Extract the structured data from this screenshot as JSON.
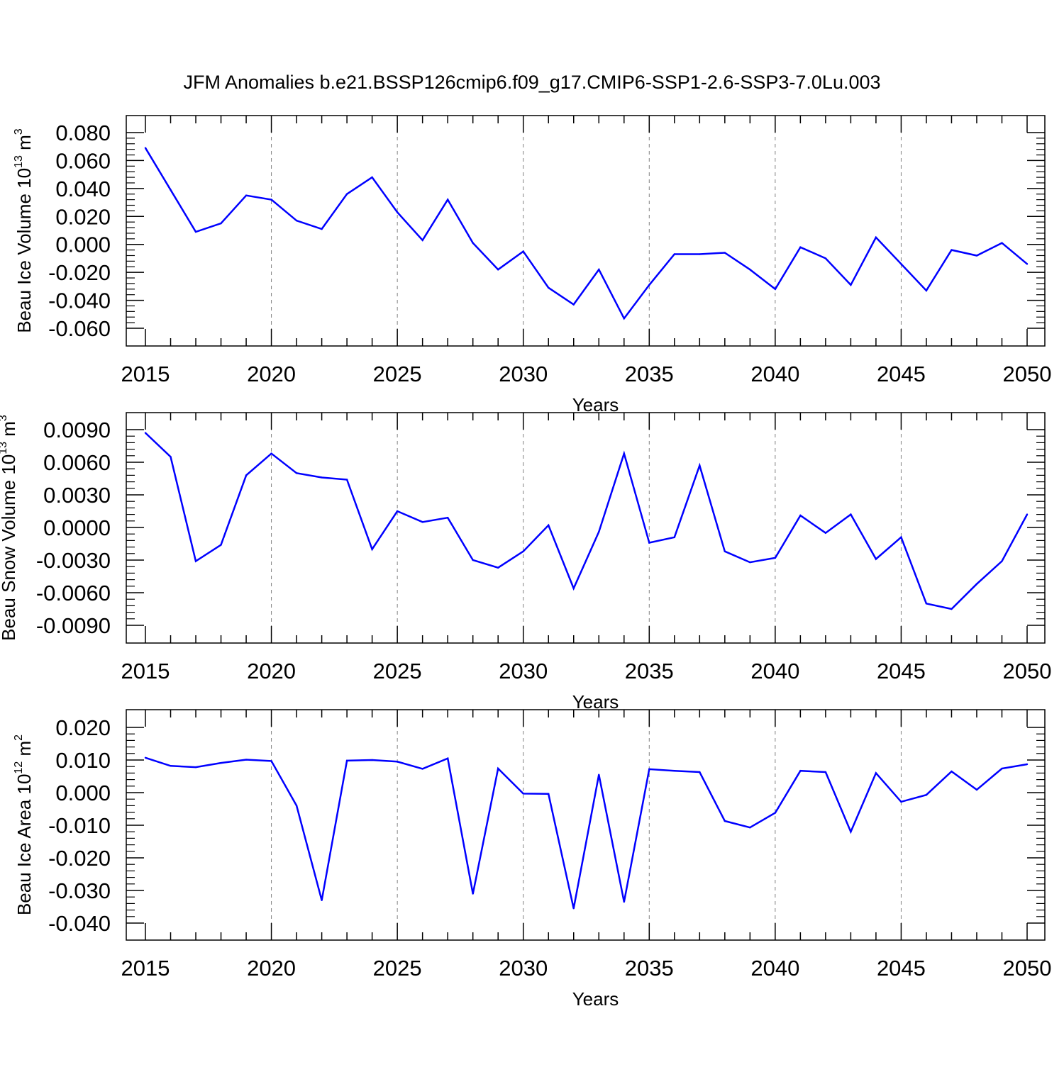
{
  "figure": {
    "title": "JFM Anomalies b.e21.BSSP126cmip6.f09_g17.CMIP6-SSP1-2.6-SSP3-7.0Lu.003"
  },
  "colors": {
    "line": "#0000ff",
    "axes": "#000000",
    "grid": "#808080"
  },
  "chart_data": [
    {
      "type": "line",
      "title": "",
      "xlabel": "Years",
      "ylabel": {
        "base": "Beau Ice Volume 10",
        "exp": "13",
        "unit": " m",
        "unit_exp": "3"
      },
      "xlim": [
        2015,
        2050
      ],
      "ylim": [
        -0.06,
        0.08
      ],
      "xticks": [
        2015,
        2020,
        2025,
        2030,
        2035,
        2040,
        2045,
        2050
      ],
      "yticks": [
        0.08,
        0.06,
        0.04,
        0.02,
        0.0,
        -0.02,
        -0.04,
        -0.06
      ],
      "ytick_labels": [
        "0.080",
        "0.060",
        "0.040",
        "0.020",
        "0.000",
        "-0.020",
        "-0.040",
        "-0.060"
      ],
      "grid": "vertical dashed at major x ticks",
      "x": [
        2015,
        2016,
        2017,
        2018,
        2019,
        2020,
        2021,
        2022,
        2023,
        2024,
        2025,
        2026,
        2027,
        2028,
        2029,
        2030,
        2031,
        2032,
        2033,
        2034,
        2035,
        2036,
        2037,
        2038,
        2039,
        2040,
        2041,
        2042,
        2043,
        2044,
        2045,
        2046,
        2047,
        2048,
        2049,
        2050
      ],
      "values": [
        0.069,
        0.039,
        0.009,
        0.015,
        0.035,
        0.032,
        0.017,
        0.011,
        0.036,
        0.048,
        0.023,
        0.003,
        0.032,
        0.001,
        -0.018,
        -0.005,
        -0.031,
        -0.043,
        -0.018,
        -0.053,
        -0.029,
        -0.007,
        -0.007,
        -0.006,
        -0.018,
        -0.032,
        -0.002,
        -0.01,
        -0.029,
        0.005,
        -0.014,
        -0.033,
        -0.004,
        -0.008,
        0.001,
        -0.014
      ]
    },
    {
      "type": "line",
      "title": "",
      "xlabel": "Years",
      "ylabel": {
        "base": "Beau Snow Volume 10",
        "exp": "13",
        "unit": " m",
        "unit_exp": "3"
      },
      "xlim": [
        2015,
        2050
      ],
      "ylim": [
        -0.009,
        0.009
      ],
      "xticks": [
        2015,
        2020,
        2025,
        2030,
        2035,
        2040,
        2045,
        2050
      ],
      "yticks": [
        0.009,
        0.006,
        0.003,
        0.0,
        -0.003,
        -0.006,
        -0.009
      ],
      "ytick_labels": [
        "0.0090",
        "0.0060",
        "0.0030",
        "0.0000",
        "-0.0030",
        "-0.0060",
        "-0.0090"
      ],
      "grid": "vertical dashed at major x ticks",
      "x": [
        2015,
        2016,
        2017,
        2018,
        2019,
        2020,
        2021,
        2022,
        2023,
        2024,
        2025,
        2026,
        2027,
        2028,
        2029,
        2030,
        2031,
        2032,
        2033,
        2034,
        2035,
        2036,
        2037,
        2038,
        2039,
        2040,
        2041,
        2042,
        2043,
        2044,
        2045,
        2046,
        2047,
        2048,
        2049,
        2050
      ],
      "values": [
        0.0087,
        0.0065,
        -0.0031,
        -0.0016,
        0.0048,
        0.0068,
        0.005,
        0.0046,
        0.0044,
        -0.002,
        0.0015,
        0.0005,
        0.0009,
        -0.003,
        -0.0037,
        -0.0022,
        0.0002,
        -0.0056,
        -0.0004,
        0.0068,
        -0.0014,
        -0.0009,
        0.0057,
        -0.0022,
        -0.0032,
        -0.0028,
        0.0011,
        -0.0005,
        0.0012,
        -0.0029,
        -0.0009,
        -0.007,
        -0.0075,
        -0.0052,
        -0.0031,
        0.0012
      ]
    },
    {
      "type": "line",
      "title": "",
      "xlabel": "Years",
      "ylabel": {
        "base": "Beau Ice Area 10",
        "exp": "12",
        "unit": " m",
        "unit_exp": "2"
      },
      "xlim": [
        2015,
        2050
      ],
      "ylim": [
        -0.04,
        0.02
      ],
      "xticks": [
        2015,
        2020,
        2025,
        2030,
        2035,
        2040,
        2045,
        2050
      ],
      "yticks": [
        0.02,
        0.01,
        0.0,
        -0.01,
        -0.02,
        -0.03,
        -0.04
      ],
      "ytick_labels": [
        "0.020",
        "0.010",
        "0.000",
        "-0.010",
        "-0.020",
        "-0.030",
        "-0.040"
      ],
      "grid": "vertical dashed at major x ticks",
      "x": [
        2015,
        2016,
        2017,
        2018,
        2019,
        2020,
        2021,
        2022,
        2023,
        2024,
        2025,
        2026,
        2027,
        2028,
        2029,
        2030,
        2031,
        2032,
        2033,
        2034,
        2035,
        2036,
        2037,
        2038,
        2039,
        2040,
        2041,
        2042,
        2043,
        2044,
        2045,
        2046,
        2047,
        2048,
        2049,
        2050
      ],
      "values": [
        0.0107,
        0.0082,
        0.0078,
        0.0091,
        0.0101,
        0.0097,
        -0.004,
        -0.033,
        0.0098,
        0.01,
        0.0095,
        0.0073,
        0.0105,
        -0.031,
        0.0074,
        -0.0003,
        -0.0004,
        -0.0355,
        0.0055,
        -0.0335,
        0.0072,
        0.0067,
        0.0063,
        -0.0087,
        -0.0107,
        -0.0062,
        0.0067,
        0.0063,
        -0.012,
        0.006,
        -0.0028,
        -0.0007,
        0.0065,
        0.0009,
        0.0074,
        0.0087
      ]
    }
  ]
}
